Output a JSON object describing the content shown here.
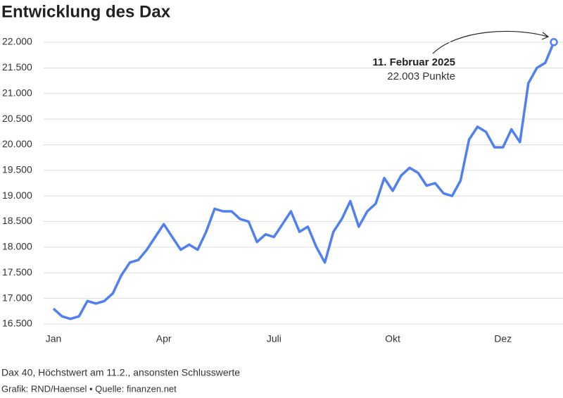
{
  "chart_data": {
    "type": "line",
    "title": "Entwicklung des Dax",
    "categories": [
      "Jan",
      null,
      null,
      null,
      null,
      null,
      null,
      null,
      null,
      null,
      null,
      null,
      null,
      "Apr",
      null,
      null,
      null,
      null,
      null,
      null,
      null,
      null,
      null,
      null,
      null,
      null,
      "Juli",
      null,
      null,
      null,
      null,
      null,
      null,
      null,
      null,
      null,
      null,
      null,
      null,
      null,
      "Okt",
      null,
      null,
      null,
      null,
      null,
      null,
      null,
      null,
      null,
      null,
      null,
      null,
      "Dez",
      null,
      null,
      null,
      null,
      null,
      null
    ],
    "values": [
      16800,
      16650,
      16600,
      16650,
      16950,
      16900,
      16950,
      17100,
      17450,
      17700,
      17750,
      17950,
      18200,
      18450,
      18200,
      17950,
      18050,
      17950,
      18300,
      18750,
      18700,
      18700,
      18550,
      18500,
      18100,
      18250,
      18200,
      18450,
      18700,
      18300,
      18400,
      18000,
      17700,
      18300,
      18550,
      18900,
      18400,
      18700,
      18850,
      19350,
      19100,
      19400,
      19550,
      19450,
      19200,
      19250,
      19050,
      19000,
      19300,
      20100,
      20350,
      20250,
      19950,
      19950,
      20300,
      20050,
      21200,
      21500,
      21600,
      22003
    ],
    "color": "#4f7ff0",
    "ylim": [
      16500,
      22000
    ],
    "yticks": [
      {
        "value": 16500,
        "label": "16.500"
      },
      {
        "value": 17000,
        "label": "17.000"
      },
      {
        "value": 17500,
        "label": "17.500"
      },
      {
        "value": 18000,
        "label": "18.000"
      },
      {
        "value": 18500,
        "label": "18.500"
      },
      {
        "value": 19000,
        "label": "19.000"
      },
      {
        "value": 19500,
        "label": "19.500"
      },
      {
        "value": 20000,
        "label": "20.000"
      },
      {
        "value": 20500,
        "label": "20.500"
      },
      {
        "value": 21000,
        "label": "21.000"
      },
      {
        "value": 21500,
        "label": "21.500"
      },
      {
        "value": 22000,
        "label": "22.000"
      }
    ],
    "grid": true,
    "annotation": {
      "title": "11. Februar 2025",
      "text": "22.003 Punkte"
    },
    "note": "Dax 40, Höchstwert am 11.2., ansonsten Schlusswerte",
    "source": "Grafik: RND/Haensel • Quelle: finanzen.net"
  }
}
